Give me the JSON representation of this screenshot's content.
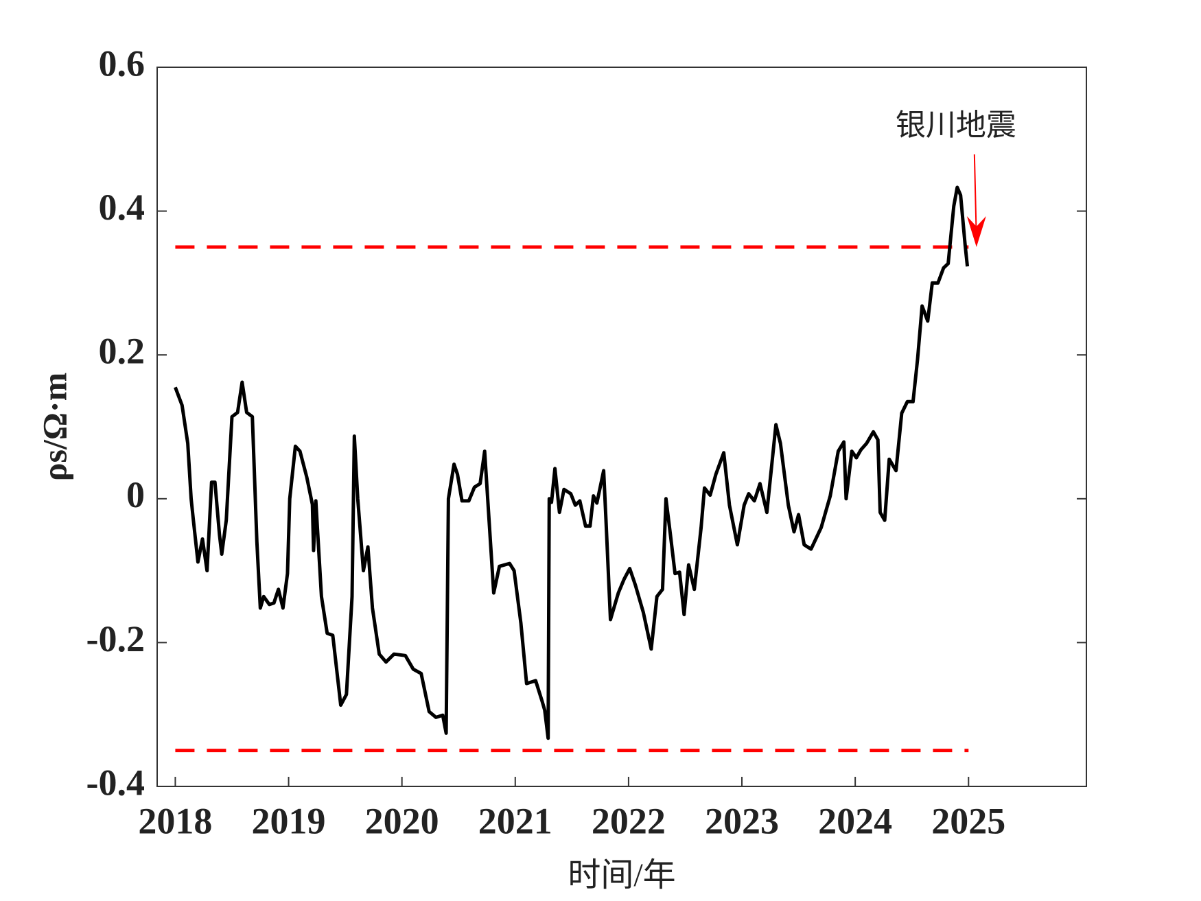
{
  "chart_data": {
    "type": "line",
    "ylabel": "ρs/Ω·m",
    "xlabel": "时间/年",
    "x": [
      2018.0,
      2018.06,
      2018.11,
      2018.14,
      2018.16,
      2018.2,
      2018.24,
      2018.28,
      2018.32,
      2018.35,
      2018.39,
      2018.41,
      2018.45,
      2018.5,
      2018.55,
      2018.59,
      2018.63,
      2018.68,
      2018.72,
      2018.75,
      2018.78,
      2018.83,
      2018.87,
      2018.91,
      2018.95,
      2018.99,
      2019.01,
      2019.06,
      2019.1,
      2019.16,
      2019.21,
      2019.22,
      2019.24,
      2019.29,
      2019.34,
      2019.39,
      2019.46,
      2019.51,
      2019.56,
      2019.58,
      2019.61,
      2019.66,
      2019.7,
      2019.74,
      2019.8,
      2019.86,
      2019.93,
      2020.03,
      2020.1,
      2020.17,
      2020.24,
      2020.3,
      2020.36,
      2020.39,
      2020.41,
      2020.46,
      2020.49,
      2020.53,
      2020.59,
      2020.64,
      2020.69,
      2020.73,
      2020.81,
      2020.86,
      2020.95,
      2020.99,
      2021.05,
      2021.1,
      2021.18,
      2021.24,
      2021.26,
      2021.29,
      2021.3,
      2021.32,
      2021.35,
      2021.39,
      2021.43,
      2021.49,
      2021.53,
      2021.57,
      2021.62,
      2021.66,
      2021.69,
      2021.72,
      2021.78,
      2021.8,
      2021.84,
      2021.91,
      2021.96,
      2022.01,
      2022.06,
      2022.13,
      2022.2,
      2022.25,
      2022.3,
      2022.33,
      2022.37,
      2022.41,
      2022.45,
      2022.49,
      2022.53,
      2022.58,
      2022.64,
      2022.67,
      2022.72,
      2022.77,
      2022.84,
      2022.89,
      2022.96,
      2023.02,
      2023.06,
      2023.11,
      2023.16,
      2023.22,
      2023.3,
      2023.34,
      2023.41,
      2023.46,
      2023.5,
      2023.55,
      2023.61,
      2023.7,
      2023.78,
      2023.85,
      2023.9,
      2023.92,
      2023.97,
      2024.01,
      2024.05,
      2024.1,
      2024.16,
      2024.2,
      2024.22,
      2024.26,
      2024.3,
      2024.36,
      2024.41,
      2024.46,
      2024.51,
      2024.55,
      2024.59,
      2024.64,
      2024.68,
      2024.73,
      2024.78,
      2024.82,
      2024.87,
      2024.9,
      2024.93,
      2024.97,
      2024.99
    ],
    "series": [
      {
        "color": "#000000",
        "values": [
          0.155,
          0.13,
          0.077,
          0.0,
          -0.03,
          -0.088,
          -0.056,
          -0.1,
          0.023,
          0.023,
          -0.05,
          -0.077,
          -0.03,
          0.114,
          0.12,
          0.162,
          0.12,
          0.114,
          -0.06,
          -0.152,
          -0.136,
          -0.147,
          -0.145,
          -0.126,
          -0.152,
          -0.104,
          0.0,
          0.073,
          0.066,
          0.03,
          -0.008,
          -0.072,
          -0.003,
          -0.136,
          -0.187,
          -0.19,
          -0.287,
          -0.272,
          -0.136,
          0.087,
          0.0,
          -0.1,
          -0.067,
          -0.152,
          -0.216,
          -0.227,
          -0.216,
          -0.218,
          -0.237,
          -0.243,
          -0.296,
          -0.304,
          -0.301,
          -0.326,
          0.0,
          0.048,
          0.034,
          -0.003,
          -0.003,
          0.016,
          0.021,
          0.066,
          -0.131,
          -0.094,
          -0.09,
          -0.1,
          -0.173,
          -0.257,
          -0.253,
          -0.283,
          -0.294,
          -0.333,
          0.0,
          -0.005,
          0.042,
          -0.019,
          0.013,
          0.007,
          -0.009,
          -0.003,
          -0.038,
          -0.038,
          0.004,
          -0.006,
          0.039,
          -0.028,
          -0.168,
          -0.131,
          -0.112,
          -0.097,
          -0.12,
          -0.158,
          -0.209,
          -0.136,
          -0.126,
          0.0,
          -0.051,
          -0.104,
          -0.102,
          -0.161,
          -0.092,
          -0.126,
          -0.04,
          0.015,
          0.005,
          0.034,
          0.064,
          -0.009,
          -0.064,
          -0.009,
          0.007,
          -0.003,
          0.021,
          -0.019,
          0.103,
          0.077,
          -0.009,
          -0.046,
          -0.022,
          -0.064,
          -0.07,
          -0.04,
          0.004,
          0.066,
          0.079,
          0.0,
          0.066,
          0.057,
          0.068,
          0.077,
          0.093,
          0.082,
          -0.019,
          -0.03,
          0.055,
          0.039,
          0.119,
          0.135,
          0.135,
          0.194,
          0.268,
          0.247,
          0.3,
          0.3,
          0.321,
          0.327,
          0.407,
          0.433,
          0.422,
          0.353,
          0.323
        ]
      }
    ],
    "thresholds": [
      0.35,
      -0.35
    ],
    "threshold_xrange": [
      2018,
      2025
    ],
    "threshold_color": "#ff0000",
    "annotation": {
      "text": "银川地震",
      "x": 2025.07,
      "y": 0.35,
      "color": "#ff0000"
    },
    "xlim": [
      2017.84,
      2026.04
    ],
    "ylim": [
      -0.4,
      0.6
    ],
    "xticks": [
      2018,
      2019,
      2020,
      2021,
      2022,
      2023,
      2024,
      2025
    ],
    "yticks": [
      -0.4,
      -0.2,
      0,
      0.2,
      0.4,
      0.6
    ]
  }
}
